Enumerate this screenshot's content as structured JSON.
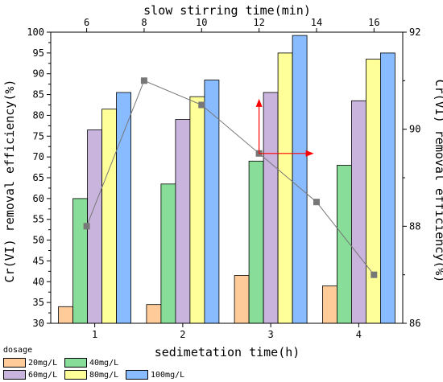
{
  "chart_data": {
    "type": "bar",
    "xlabel": "sedimetation time(h)",
    "top_xlabel": "slow stirring time(min)",
    "ylabel": "Cr(VI) removal efficiency(%)",
    "ylabel_right": "Cr(VI) removal efficiency(%)",
    "categories": [
      "1",
      "2",
      "3",
      "4"
    ],
    "ylim": [
      30,
      100
    ],
    "yticks": [
      30,
      35,
      40,
      45,
      50,
      55,
      60,
      65,
      70,
      75,
      80,
      85,
      90,
      95,
      100
    ],
    "series": [
      {
        "name": "20mg/L",
        "color": "#ffcc99",
        "values": [
          34,
          34.5,
          41.5,
          39
        ]
      },
      {
        "name": "40mg/L",
        "color": "#88dd99",
        "values": [
          60,
          63.5,
          69,
          68
        ]
      },
      {
        "name": "60mg/L",
        "color": "#c8b4dc",
        "values": [
          76.5,
          79,
          85.5,
          83.5
        ]
      },
      {
        "name": "80mg/L",
        "color": "#ffff99",
        "values": [
          81.5,
          84.5,
          95,
          93.5
        ]
      },
      {
        "name": "100mg/L",
        "color": "#88bbff",
        "values": [
          85.5,
          88.5,
          99.2,
          95
        ]
      }
    ],
    "line_series": {
      "x_axis": "slow stirring time(min)",
      "color": "#777777",
      "x": [
        6,
        8,
        10,
        12,
        14,
        16
      ],
      "y": [
        88,
        91,
        90.5,
        89.5,
        88.5,
        87
      ],
      "top_xlim": [
        4.75,
        17
      ]
    },
    "top_xticks": [
      6,
      8,
      10,
      12,
      14,
      16
    ],
    "y2lim": [
      86,
      92
    ],
    "y2ticks": [
      86,
      88,
      90,
      92
    ],
    "annotation_arrows_color": "#ff0000",
    "legend": {
      "title": "dosage",
      "placement": "bottom-left"
    }
  }
}
